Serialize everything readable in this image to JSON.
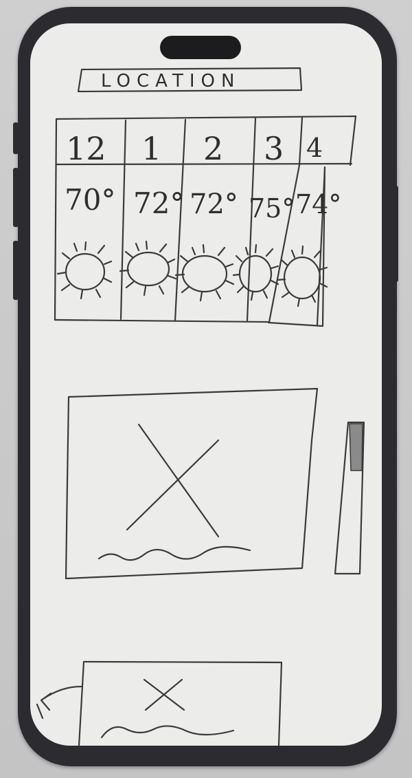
{
  "header": {
    "title": "LOCATION"
  },
  "forecast": {
    "hours": [
      {
        "label": "12",
        "temp": "70°",
        "icon": "sun-icon"
      },
      {
        "label": "1",
        "temp": "72°",
        "icon": "sun-icon"
      },
      {
        "label": "2",
        "temp": "72°",
        "icon": "sun-icon"
      },
      {
        "label": "3",
        "temp": "75°",
        "icon": "sun-icon"
      },
      {
        "label": "4",
        "temp": "74°",
        "icon": "sun-icon"
      }
    ]
  },
  "main_card": {
    "image": "image-placeholder-icon",
    "caption": "squiggle-text-placeholder"
  },
  "bottom_card": {
    "image": "image-placeholder-icon",
    "caption": "squiggle-text-placeholder"
  },
  "icons": {
    "back": "back-arrow-icon"
  },
  "colors": {
    "device_frame": "#2b2b30",
    "screen_paper": "#ececea",
    "ink": "#3a3a3a"
  }
}
